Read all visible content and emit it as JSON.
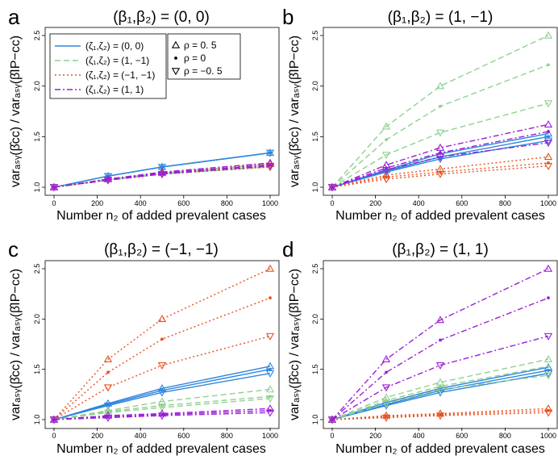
{
  "chart_data": {
    "type": "line",
    "x_values": [
      0,
      250,
      500,
      1000
    ],
    "x_ticks": [
      "0",
      "200",
      "400",
      "600",
      "800",
      "1000"
    ],
    "y_ticks": [
      "1.0",
      "1.5",
      "2.0",
      "2.5"
    ],
    "xlim": [
      0,
      1000
    ],
    "ylim": [
      1.0,
      2.5
    ],
    "xlabel": "Number n₂ of added prevalent cases",
    "ylabel": "varₐₛᵧ(β̂cc) / varₐₛᵧ(β̂IP−cc)",
    "legend": {
      "zeta_labels": [
        "(ζ₁,ζ₂) = (0, 0)",
        "(ζ₁,ζ₂) = (1, −1)",
        "(ζ₁,ζ₂) = (−1, −1)",
        "(ζ₁,ζ₂) = (1, 1)"
      ],
      "zeta_colors": [
        "#2e86de",
        "#8fd18f",
        "#e8501e",
        "#9b1fd6"
      ],
      "zeta_dash": [
        "",
        "7,4",
        "2,3",
        "7,3,2,3"
      ],
      "rho_labels": [
        "ρ = 0. 5",
        "ρ = 0",
        "ρ = −0. 5"
      ],
      "rho_markers": [
        "triangle-up",
        "dot",
        "triangle-down"
      ]
    },
    "panels": [
      {
        "letter": "a",
        "title": "(β₁,β₂) = (0, 0)",
        "series": [
          {
            "zeta": 0,
            "rho": 0,
            "values": [
              1.0,
              1.11,
              1.2,
              1.34
            ]
          },
          {
            "zeta": 0,
            "rho": 1,
            "values": [
              1.0,
              1.11,
              1.2,
              1.34
            ]
          },
          {
            "zeta": 0,
            "rho": 2,
            "values": [
              1.0,
              1.11,
              1.2,
              1.34
            ]
          },
          {
            "zeta": 1,
            "rho": 0,
            "values": [
              1.0,
              1.08,
              1.14,
              1.23
            ]
          },
          {
            "zeta": 1,
            "rho": 1,
            "values": [
              1.0,
              1.07,
              1.13,
              1.21
            ]
          },
          {
            "zeta": 1,
            "rho": 2,
            "values": [
              1.0,
              1.07,
              1.13,
              1.2
            ]
          },
          {
            "zeta": 2,
            "rho": 0,
            "values": [
              1.0,
              1.08,
              1.14,
              1.23
            ]
          },
          {
            "zeta": 2,
            "rho": 1,
            "values": [
              1.0,
              1.07,
              1.13,
              1.21
            ]
          },
          {
            "zeta": 2,
            "rho": 2,
            "values": [
              1.0,
              1.07,
              1.13,
              1.2
            ]
          },
          {
            "zeta": 3,
            "rho": 0,
            "values": [
              1.0,
              1.08,
              1.15,
              1.24
            ]
          },
          {
            "zeta": 3,
            "rho": 1,
            "values": [
              1.0,
              1.08,
              1.14,
              1.22
            ]
          },
          {
            "zeta": 3,
            "rho": 2,
            "values": [
              1.0,
              1.07,
              1.13,
              1.21
            ]
          }
        ]
      },
      {
        "letter": "b",
        "title": "(β₁,β₂) = (1, −1)",
        "series": [
          {
            "zeta": 0,
            "rho": 0,
            "values": [
              1.0,
              1.17,
              1.33,
              1.53
            ]
          },
          {
            "zeta": 0,
            "rho": 1,
            "values": [
              1.0,
              1.16,
              1.3,
              1.5
            ]
          },
          {
            "zeta": 0,
            "rho": 2,
            "values": [
              1.0,
              1.15,
              1.28,
              1.46
            ]
          },
          {
            "zeta": 1,
            "rho": 0,
            "values": [
              1.0,
              1.6,
              2.0,
              2.5
            ]
          },
          {
            "zeta": 1,
            "rho": 1,
            "values": [
              1.0,
              1.47,
              1.8,
              2.21
            ]
          },
          {
            "zeta": 1,
            "rho": 2,
            "values": [
              1.0,
              1.32,
              1.54,
              1.83
            ]
          },
          {
            "zeta": 2,
            "rho": 0,
            "values": [
              1.0,
              1.12,
              1.18,
              1.3
            ]
          },
          {
            "zeta": 2,
            "rho": 1,
            "values": [
              1.0,
              1.1,
              1.15,
              1.24
            ]
          },
          {
            "zeta": 2,
            "rho": 2,
            "values": [
              1.0,
              1.08,
              1.13,
              1.21
            ]
          },
          {
            "zeta": 3,
            "rho": 0,
            "values": [
              1.0,
              1.22,
              1.39,
              1.62
            ]
          },
          {
            "zeta": 3,
            "rho": 1,
            "values": [
              1.0,
              1.19,
              1.34,
              1.55
            ]
          },
          {
            "zeta": 3,
            "rho": 2,
            "values": [
              1.0,
              1.17,
              1.3,
              1.44
            ]
          }
        ]
      },
      {
        "letter": "c",
        "title": "(β₁,β₂) = (−1, −1)",
        "series": [
          {
            "zeta": 0,
            "rho": 0,
            "values": [
              1.0,
              1.16,
              1.31,
              1.53
            ]
          },
          {
            "zeta": 0,
            "rho": 1,
            "values": [
              1.0,
              1.15,
              1.29,
              1.5
            ]
          },
          {
            "zeta": 0,
            "rho": 2,
            "values": [
              1.0,
              1.14,
              1.27,
              1.46
            ]
          },
          {
            "zeta": 1,
            "rho": 0,
            "values": [
              1.0,
              1.09,
              1.18,
              1.3
            ]
          },
          {
            "zeta": 1,
            "rho": 1,
            "values": [
              1.0,
              1.08,
              1.14,
              1.23
            ]
          },
          {
            "zeta": 1,
            "rho": 2,
            "values": [
              1.0,
              1.07,
              1.12,
              1.21
            ]
          },
          {
            "zeta": 2,
            "rho": 0,
            "values": [
              1.0,
              1.6,
              2.0,
              2.5
            ]
          },
          {
            "zeta": 2,
            "rho": 1,
            "values": [
              1.0,
              1.47,
              1.8,
              2.21
            ]
          },
          {
            "zeta": 2,
            "rho": 2,
            "values": [
              1.0,
              1.32,
              1.54,
              1.83
            ]
          },
          {
            "zeta": 3,
            "rho": 0,
            "values": [
              1.0,
              1.04,
              1.06,
              1.11
            ]
          },
          {
            "zeta": 3,
            "rho": 1,
            "values": [
              1.0,
              1.03,
              1.05,
              1.09
            ]
          },
          {
            "zeta": 3,
            "rho": 2,
            "values": [
              1.0,
              1.02,
              1.04,
              1.07
            ]
          }
        ]
      },
      {
        "letter": "d",
        "title": "(β₁,β₂) = (1, 1)",
        "series": [
          {
            "zeta": 0,
            "rho": 0,
            "values": [
              1.0,
              1.17,
              1.31,
              1.52
            ]
          },
          {
            "zeta": 0,
            "rho": 1,
            "values": [
              1.0,
              1.15,
              1.29,
              1.49
            ]
          },
          {
            "zeta": 0,
            "rho": 2,
            "values": [
              1.0,
              1.14,
              1.27,
              1.46
            ]
          },
          {
            "zeta": 1,
            "rho": 0,
            "values": [
              1.0,
              1.22,
              1.37,
              1.6
            ]
          },
          {
            "zeta": 1,
            "rho": 1,
            "values": [
              1.0,
              1.19,
              1.33,
              1.53
            ]
          },
          {
            "zeta": 1,
            "rho": 2,
            "values": [
              1.0,
              1.16,
              1.3,
              1.44
            ]
          },
          {
            "zeta": 2,
            "rho": 0,
            "values": [
              1.0,
              1.04,
              1.06,
              1.11
            ]
          },
          {
            "zeta": 2,
            "rho": 1,
            "values": [
              1.0,
              1.03,
              1.05,
              1.09
            ]
          },
          {
            "zeta": 2,
            "rho": 2,
            "values": [
              1.0,
              1.02,
              1.04,
              1.07
            ]
          },
          {
            "zeta": 3,
            "rho": 0,
            "values": [
              1.0,
              1.6,
              1.99,
              2.5
            ]
          },
          {
            "zeta": 3,
            "rho": 1,
            "values": [
              1.0,
              1.47,
              1.79,
              2.21
            ]
          },
          {
            "zeta": 3,
            "rho": 2,
            "values": [
              1.0,
              1.32,
              1.54,
              1.83
            ]
          }
        ]
      }
    ]
  }
}
